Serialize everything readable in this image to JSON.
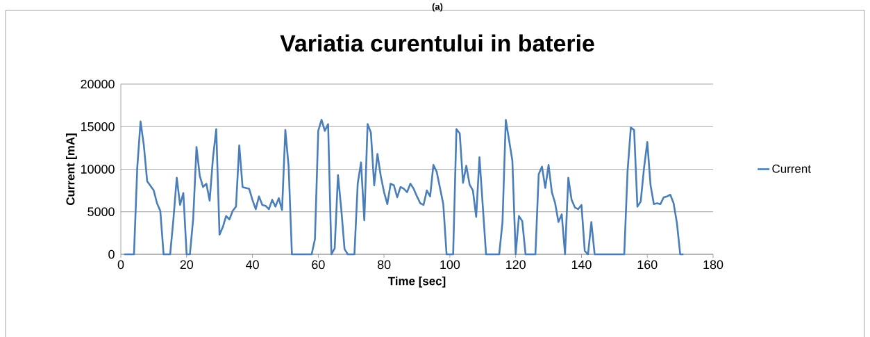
{
  "chart_data": {
    "type": "line",
    "title": "Variatia curentului in baterie",
    "xlabel": "Time [sec]",
    "ylabel": "Current [mA]",
    "annotations": [
      "(a)"
    ],
    "xlim": [
      0,
      180
    ],
    "xticks": [
      0,
      20,
      40,
      60,
      80,
      100,
      120,
      140,
      160,
      180
    ],
    "ylim": [
      0,
      20000
    ],
    "yticks": [
      0,
      5000,
      10000,
      15000,
      20000
    ],
    "grid": "y",
    "legend": "right",
    "marker": "none",
    "line_style": "solid",
    "series": [
      {
        "name": "Current",
        "color": "#4a7ebb",
        "x": [
          1,
          4,
          5,
          6,
          7,
          8,
          10,
          11,
          12,
          13,
          15,
          16,
          17,
          18,
          19,
          20,
          21,
          22,
          23,
          24,
          25,
          26,
          27,
          28,
          29,
          30,
          31,
          32,
          33,
          34,
          35,
          36,
          37,
          39,
          40,
          41,
          42,
          43,
          44,
          45,
          46,
          47,
          48,
          49,
          50,
          51,
          52,
          58,
          59,
          60,
          61,
          62,
          63,
          64,
          65,
          66,
          67,
          68,
          69,
          71,
          72,
          73,
          74,
          75,
          76,
          77,
          78,
          79,
          80,
          81,
          82,
          83,
          84,
          85,
          86,
          87,
          88,
          89,
          90,
          91,
          92,
          93,
          94,
          95,
          96,
          98,
          99,
          101,
          102,
          103,
          104,
          105,
          106,
          107,
          108,
          109,
          111,
          115,
          116,
          117,
          119,
          120,
          121,
          122,
          123,
          126,
          127,
          128,
          129,
          130,
          131,
          132,
          133,
          134,
          135,
          136,
          137,
          138,
          139,
          140,
          141,
          142,
          143,
          144,
          153,
          154,
          155,
          156,
          157,
          158,
          159,
          160,
          161,
          162,
          163,
          164,
          165,
          166,
          167,
          168,
          169,
          170,
          171
        ],
        "values": [
          0,
          0,
          10200,
          15600,
          12800,
          8600,
          7500,
          6000,
          5100,
          0,
          0,
          4200,
          9000,
          5800,
          7200,
          0,
          0,
          4200,
          12600,
          9200,
          7900,
          8300,
          6300,
          11300,
          14700,
          2300,
          3200,
          4500,
          4100,
          5100,
          5600,
          12800,
          7900,
          7700,
          6400,
          5300,
          6800,
          5800,
          5700,
          5300,
          6400,
          5600,
          6600,
          5200,
          14600,
          10300,
          0,
          0,
          1800,
          14500,
          15800,
          14500,
          15300,
          0,
          700,
          9300,
          5300,
          600,
          0,
          0,
          8300,
          10800,
          4000,
          15300,
          14300,
          8100,
          11800,
          9200,
          7300,
          5900,
          8300,
          8100,
          6700,
          7900,
          7700,
          7300,
          8300,
          7700,
          6800,
          6000,
          5800,
          7500,
          6800,
          10500,
          9700,
          5900,
          0,
          0,
          14700,
          14200,
          8400,
          10400,
          8200,
          7500,
          4400,
          11400,
          0,
          0,
          3800,
          15800,
          11000,
          0,
          4500,
          3900,
          0,
          0,
          9400,
          10300,
          7800,
          10500,
          7300,
          6000,
          3800,
          4700,
          0,
          9000,
          6400,
          5500,
          5300,
          5800,
          400,
          0,
          3800,
          0,
          0,
          9700,
          14900,
          14600,
          5600,
          6200,
          10100,
          13200,
          8100,
          5900,
          6000,
          5900,
          6700,
          6800,
          7000,
          6000,
          3700,
          0,
          0
        ]
      }
    ]
  }
}
